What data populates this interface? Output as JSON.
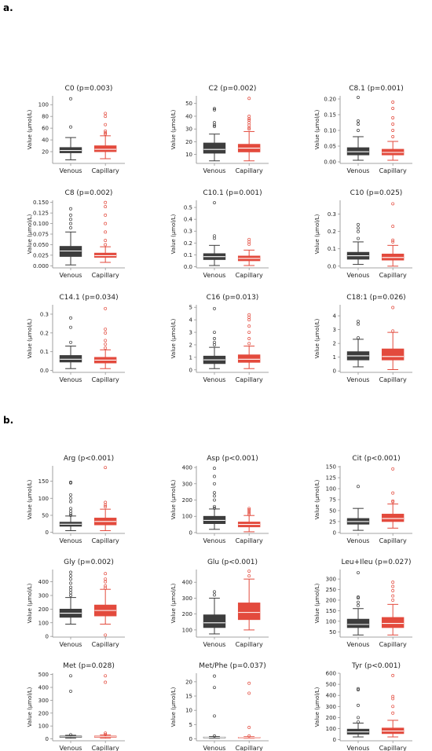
{
  "panels": [
    {
      "label": "a."
    },
    {
      "label": "b."
    }
  ],
  "colors": {
    "venous": "#3d3d3d",
    "capillary": "#e34a3d",
    "axis": "#888888"
  },
  "chart_data": [
    {
      "type": "box",
      "title": "C0 (p=0.003)",
      "ylabel": "Value (μmol/L)",
      "categories": [
        "Venous",
        "Capillary"
      ],
      "ylim": [
        0,
        115
      ],
      "yticks": [
        20,
        40,
        60,
        80,
        100
      ],
      "series": [
        {
          "whislo": 6,
          "q1": 18,
          "med": 22,
          "q3": 27,
          "whishi": 44,
          "fliers": [
            62,
            110
          ]
        },
        {
          "whislo": 8,
          "q1": 20,
          "med": 24,
          "q3": 30,
          "whishi": 47,
          "fliers": [
            50,
            52,
            55,
            66,
            80,
            85
          ]
        }
      ]
    },
    {
      "type": "box",
      "title": "C2 (p=0.002)",
      "ylabel": "Value (μmol/L)",
      "categories": [
        "Venous",
        "Capillary"
      ],
      "ylim": [
        3,
        56
      ],
      "yticks": [
        10,
        20,
        30,
        40,
        50
      ],
      "series": [
        {
          "whislo": 5,
          "q1": 11,
          "med": 14,
          "q3": 19,
          "whishi": 26,
          "fliers": [
            32,
            33,
            35,
            45,
            46
          ]
        },
        {
          "whislo": 5,
          "q1": 12,
          "med": 15,
          "q3": 18,
          "whishi": 28,
          "fliers": [
            30,
            31,
            33,
            35,
            37,
            38,
            40,
            54
          ]
        }
      ]
    },
    {
      "type": "box",
      "title": "C8.1 (p=0.001)",
      "ylabel": "Value (μmol/L)",
      "categories": [
        "Venous",
        "Capillary"
      ],
      "ylim": [
        -0.005,
        0.21
      ],
      "yticks": [
        0.0,
        0.05,
        0.1,
        0.15,
        0.2
      ],
      "series": [
        {
          "whislo": 0.005,
          "q1": 0.022,
          "med": 0.032,
          "q3": 0.045,
          "whishi": 0.08,
          "fliers": [
            0.1,
            0.12,
            0.13,
            0.205
          ]
        },
        {
          "whislo": 0.005,
          "q1": 0.022,
          "med": 0.03,
          "q3": 0.04,
          "whishi": 0.065,
          "fliers": [
            0.08,
            0.1,
            0.12,
            0.14,
            0.17,
            0.19
          ]
        }
      ]
    },
    {
      "type": "box",
      "title": "C8 (p=0.002)",
      "ylabel": "Value (μmol/L)",
      "categories": [
        "Venous",
        "Capillary"
      ],
      "ylim": [
        -0.005,
        0.155
      ],
      "yticks": [
        0.0,
        0.025,
        0.05,
        0.075,
        0.1,
        0.125,
        0.15
      ],
      "series": [
        {
          "whislo": 0.002,
          "q1": 0.022,
          "med": 0.035,
          "q3": 0.046,
          "whishi": 0.08,
          "fliers": [
            0.09,
            0.1,
            0.11,
            0.12,
            0.135
          ]
        },
        {
          "whislo": 0.008,
          "q1": 0.02,
          "med": 0.024,
          "q3": 0.03,
          "whishi": 0.045,
          "fliers": [
            0.05,
            0.06,
            0.08,
            0.1,
            0.12,
            0.14,
            0.15
          ]
        }
      ]
    },
    {
      "type": "box",
      "title": "C10.1 (p=0.001)",
      "ylabel": "Value (μmol/L)",
      "categories": [
        "Venous",
        "Capillary"
      ],
      "ylim": [
        -0.01,
        0.56
      ],
      "yticks": [
        0.0,
        0.1,
        0.2,
        0.3,
        0.4,
        0.5
      ],
      "series": [
        {
          "whislo": 0.01,
          "q1": 0.06,
          "med": 0.085,
          "q3": 0.11,
          "whishi": 0.18,
          "fliers": [
            0.24,
            0.26,
            0.54
          ]
        },
        {
          "whislo": 0.01,
          "q1": 0.05,
          "med": 0.07,
          "q3": 0.09,
          "whishi": 0.14,
          "fliers": [
            0.19,
            0.21,
            0.23
          ]
        }
      ]
    },
    {
      "type": "box",
      "title": "C10 (p=0.025)",
      "ylabel": "Value (μmol/L)",
      "categories": [
        "Venous",
        "Capillary"
      ],
      "ylim": [
        -0.01,
        0.38
      ],
      "yticks": [
        0.0,
        0.1,
        0.2,
        0.3
      ],
      "series": [
        {
          "whislo": 0.01,
          "q1": 0.04,
          "med": 0.06,
          "q3": 0.08,
          "whishi": 0.14,
          "fliers": [
            0.16,
            0.2,
            0.22,
            0.24
          ]
        },
        {
          "whislo": 0.0,
          "q1": 0.035,
          "med": 0.05,
          "q3": 0.07,
          "whishi": 0.12,
          "fliers": [
            0.14,
            0.15,
            0.23,
            0.36
          ]
        }
      ]
    },
    {
      "type": "box",
      "title": "C14.1 (p=0.034)",
      "ylabel": "Value (μmol/L)",
      "categories": [
        "Venous",
        "Capillary"
      ],
      "ylim": [
        -0.01,
        0.35
      ],
      "yticks": [
        0.0,
        0.1,
        0.2,
        0.3
      ],
      "series": [
        {
          "whislo": 0.01,
          "q1": 0.045,
          "med": 0.06,
          "q3": 0.08,
          "whishi": 0.13,
          "fliers": [
            0.15,
            0.23,
            0.28
          ]
        },
        {
          "whislo": 0.01,
          "q1": 0.04,
          "med": 0.055,
          "q3": 0.07,
          "whishi": 0.11,
          "fliers": [
            0.12,
            0.14,
            0.16,
            0.2,
            0.22,
            0.33
          ]
        }
      ]
    },
    {
      "type": "box",
      "title": "C16 (p=0.013)",
      "ylabel": "Value (μmol/L)",
      "categories": [
        "Venous",
        "Capillary"
      ],
      "ylim": [
        -0.2,
        5.2
      ],
      "yticks": [
        0,
        1,
        2,
        3,
        4,
        5
      ],
      "series": [
        {
          "whislo": 0.1,
          "q1": 0.5,
          "med": 0.8,
          "q3": 1.1,
          "whishi": 1.8,
          "fliers": [
            2.0,
            2.2,
            2.5,
            3.0,
            4.9
          ]
        },
        {
          "whislo": 0.1,
          "q1": 0.6,
          "med": 0.85,
          "q3": 1.2,
          "whishi": 1.9,
          "fliers": [
            2.1,
            2.5,
            3.0,
            3.5,
            4.0,
            4.2,
            4.4
          ]
        }
      ]
    },
    {
      "type": "box",
      "title": "C18:1 (p=0.026)",
      "ylabel": "Value (μmol/L)",
      "categories": [
        "Venous",
        "Capillary"
      ],
      "ylim": [
        -0.1,
        4.8
      ],
      "yticks": [
        0,
        1,
        2,
        3,
        4
      ],
      "series": [
        {
          "whislo": 0.3,
          "q1": 0.8,
          "med": 1.1,
          "q3": 1.4,
          "whishi": 2.3,
          "fliers": [
            2.4,
            3.4,
            3.6
          ]
        },
        {
          "whislo": 0.1,
          "q1": 0.8,
          "med": 1.05,
          "q3": 1.6,
          "whishi": 2.8,
          "fliers": [
            2.9,
            4.6
          ]
        }
      ]
    },
    {
      "type": "box",
      "title": "Arg (p<0.001)",
      "ylabel": "Value (μmol/L)",
      "categories": [
        "Venous",
        "Capillary"
      ],
      "ylim": [
        -3,
        195
      ],
      "yticks": [
        0,
        50,
        100,
        150
      ],
      "series": [
        {
          "whislo": 5,
          "q1": 18,
          "med": 24,
          "q3": 30,
          "whishi": 48,
          "fliers": [
            50,
            55,
            62,
            70,
            90,
            100,
            110,
            145,
            147
          ]
        },
        {
          "whislo": 5,
          "q1": 22,
          "med": 32,
          "q3": 42,
          "whishi": 68,
          "fliers": [
            75,
            80,
            88,
            190
          ]
        }
      ]
    },
    {
      "type": "box",
      "title": "Asp (p<0.001)",
      "ylabel": "Value (μmol/L)",
      "categories": [
        "Venous",
        "Capillary"
      ],
      "ylim": [
        -5,
        410
      ],
      "yticks": [
        0,
        100,
        200,
        300,
        400
      ],
      "series": [
        {
          "whislo": 20,
          "q1": 55,
          "med": 75,
          "q3": 100,
          "whishi": 145,
          "fliers": [
            150,
            160,
            200,
            225,
            245,
            300,
            345,
            395
          ]
        },
        {
          "whislo": 5,
          "q1": 35,
          "med": 50,
          "q3": 65,
          "whishi": 105,
          "fliers": [
            110,
            120,
            130,
            140,
            148
          ]
        }
      ]
    },
    {
      "type": "box",
      "title": "Cit (p<0.001)",
      "ylabel": "Value (μmol/L)",
      "categories": [
        "Venous",
        "Capillary"
      ],
      "ylim": [
        -2,
        152
      ],
      "yticks": [
        0,
        25,
        50,
        75,
        100,
        125,
        150
      ],
      "series": [
        {
          "whislo": 5,
          "q1": 19,
          "med": 25,
          "q3": 32,
          "whishi": 55,
          "fliers": [
            105
          ]
        },
        {
          "whislo": 10,
          "q1": 25,
          "med": 32,
          "q3": 42,
          "whishi": 65,
          "fliers": [
            70,
            72,
            90,
            145
          ]
        }
      ]
    },
    {
      "type": "box",
      "title": "Gly (p=0.002)",
      "ylabel": "Value (μmol/L)",
      "categories": [
        "Venous",
        "Capillary"
      ],
      "ylim": [
        -5,
        490
      ],
      "yticks": [
        0,
        100,
        200,
        300,
        400
      ],
      "series": [
        {
          "whislo": 90,
          "q1": 140,
          "med": 170,
          "q3": 200,
          "whishi": 285,
          "fliers": [
            300,
            320,
            340,
            360,
            390,
            420,
            445,
            470
          ]
        },
        {
          "whislo": 90,
          "q1": 150,
          "med": 190,
          "q3": 230,
          "whishi": 345,
          "fliers": [
            355,
            370,
            400,
            420,
            460,
            10
          ]
        }
      ]
    },
    {
      "type": "box",
      "title": "Glu (p<0.001)",
      "ylabel": "Value (μmol/L)",
      "categories": [
        "Venous",
        "Capillary"
      ],
      "ylim": [
        55,
        480
      ],
      "yticks": [
        100,
        200,
        300,
        400
      ],
      "series": [
        {
          "whislo": 75,
          "q1": 115,
          "med": 145,
          "q3": 195,
          "whishi": 300,
          "fliers": [
            320,
            340
          ]
        },
        {
          "whislo": 100,
          "q1": 165,
          "med": 210,
          "q3": 270,
          "whishi": 420,
          "fliers": [
            440,
            470
          ]
        }
      ]
    },
    {
      "type": "box",
      "title": "Leu+Ileu (p=0.027)",
      "ylabel": "Value (μmol/L)",
      "categories": [
        "Venous",
        "Capillary"
      ],
      "ylim": [
        25,
        345
      ],
      "yticks": [
        50,
        100,
        150,
        200,
        250,
        300
      ],
      "series": [
        {
          "whislo": 35,
          "q1": 70,
          "med": 85,
          "q3": 110,
          "whishi": 160,
          "fliers": [
            175,
            190,
            210,
            215,
            330
          ]
        },
        {
          "whislo": 35,
          "q1": 70,
          "med": 90,
          "q3": 118,
          "whishi": 180,
          "fliers": [
            200,
            220,
            245,
            265,
            285
          ]
        }
      ]
    },
    {
      "type": "box",
      "title": "Met (p=0.028)",
      "ylabel": "Value (μmol/L)",
      "categories": [
        "Venous",
        "Capillary"
      ],
      "ylim": [
        -15,
        510
      ],
      "yticks": [
        0,
        100,
        200,
        300,
        400,
        500
      ],
      "series": [
        {
          "whislo": 5,
          "q1": 12,
          "med": 17,
          "q3": 22,
          "whishi": 28,
          "fliers": [
            32,
            370,
            490
          ]
        },
        {
          "whislo": 5,
          "q1": 12,
          "med": 17,
          "q3": 22,
          "whishi": 30,
          "fliers": [
            35,
            45,
            440,
            490
          ]
        }
      ]
    },
    {
      "type": "box",
      "title": "Met/Phe (p=0.037)",
      "ylabel": "Value (μmol/L)",
      "categories": [
        "Venous",
        "Capillary"
      ],
      "ylim": [
        -0.7,
        23
      ],
      "yticks": [
        0,
        5,
        10,
        15,
        20
      ],
      "series": [
        {
          "whislo": 0.2,
          "q1": 0.4,
          "med": 0.5,
          "q3": 0.6,
          "whishi": 0.8,
          "fliers": [
            1.0,
            8.0,
            18.0,
            22.0
          ]
        },
        {
          "whislo": 0.2,
          "q1": 0.35,
          "med": 0.45,
          "q3": 0.55,
          "whishi": 0.75,
          "fliers": [
            1.0,
            4.0,
            16.0,
            19.5
          ]
        }
      ]
    },
    {
      "type": "box",
      "title": "Tyr (p<0.001)",
      "ylabel": "Value (μmol/L)",
      "categories": [
        "Venous",
        "Capillary"
      ],
      "ylim": [
        -10,
        600
      ],
      "yticks": [
        0,
        100,
        200,
        300,
        400,
        500,
        600
      ],
      "series": [
        {
          "whislo": 25,
          "q1": 50,
          "med": 70,
          "q3": 95,
          "whishi": 150,
          "fliers": [
            160,
            200,
            310,
            450,
            460
          ]
        },
        {
          "whislo": 25,
          "q1": 55,
          "med": 78,
          "q3": 105,
          "whishi": 175,
          "fliers": [
            240,
            300,
            370,
            390,
            580
          ]
        }
      ]
    }
  ]
}
